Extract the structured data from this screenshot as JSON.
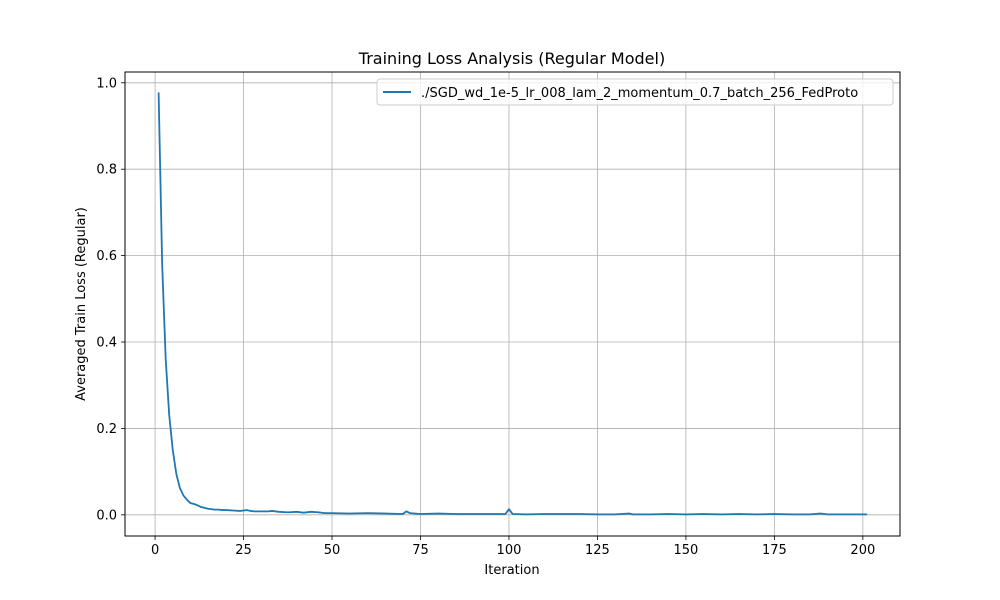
{
  "chart_data": {
    "type": "line",
    "title": "Training Loss Analysis (Regular Model)",
    "xlabel": "Iteration",
    "ylabel": "Averaged Train Loss (Regular)",
    "xlim": [
      -8.5,
      210.5
    ],
    "ylim": [
      -0.049,
      1.025
    ],
    "xticks": [
      0,
      25,
      50,
      75,
      100,
      125,
      150,
      175,
      200
    ],
    "xtick_labels": [
      "0",
      "25",
      "50",
      "75",
      "100",
      "125",
      "150",
      "175",
      "200"
    ],
    "yticks": [
      0.0,
      0.2,
      0.4,
      0.6,
      0.8,
      1.0
    ],
    "ytick_labels": [
      "0.0",
      "0.2",
      "0.4",
      "0.6",
      "0.8",
      "1.0"
    ],
    "grid": true,
    "legend_position": "top-right",
    "series": [
      {
        "name": "./SGD_wd_1e-5_lr_008_lam_2_momentum_0.7_batch_256_FedProto",
        "color": "#1f77b4",
        "x": [
          1,
          2,
          3,
          4,
          5,
          6,
          7,
          8,
          9,
          10,
          11,
          12,
          13,
          14,
          15,
          16,
          17,
          18,
          19,
          20,
          22,
          24,
          25,
          26,
          27,
          28,
          30,
          32,
          33,
          35,
          37,
          38,
          40,
          42,
          44,
          46,
          48,
          50,
          55,
          60,
          65,
          70,
          71,
          72,
          75,
          80,
          85,
          90,
          95,
          99,
          100,
          101,
          105,
          110,
          115,
          120,
          125,
          130,
          134,
          135,
          140,
          145,
          150,
          155,
          160,
          165,
          170,
          175,
          180,
          185,
          188,
          190,
          195,
          200,
          201
        ],
        "y": [
          0.976,
          0.58,
          0.36,
          0.23,
          0.15,
          0.095,
          0.062,
          0.045,
          0.035,
          0.027,
          0.025,
          0.022,
          0.018,
          0.016,
          0.014,
          0.013,
          0.012,
          0.012,
          0.011,
          0.011,
          0.01,
          0.009,
          0.01,
          0.011,
          0.009,
          0.008,
          0.008,
          0.008,
          0.009,
          0.007,
          0.006,
          0.006,
          0.007,
          0.005,
          0.007,
          0.006,
          0.004,
          0.004,
          0.003,
          0.004,
          0.003,
          0.002,
          0.008,
          0.004,
          0.002,
          0.003,
          0.002,
          0.002,
          0.002,
          0.002,
          0.013,
          0.002,
          0.001,
          0.002,
          0.002,
          0.002,
          0.001,
          0.001,
          0.003,
          0.001,
          0.001,
          0.002,
          0.001,
          0.002,
          0.001,
          0.002,
          0.001,
          0.002,
          0.001,
          0.001,
          0.003,
          0.001,
          0.001,
          0.001,
          0.001
        ]
      }
    ]
  }
}
